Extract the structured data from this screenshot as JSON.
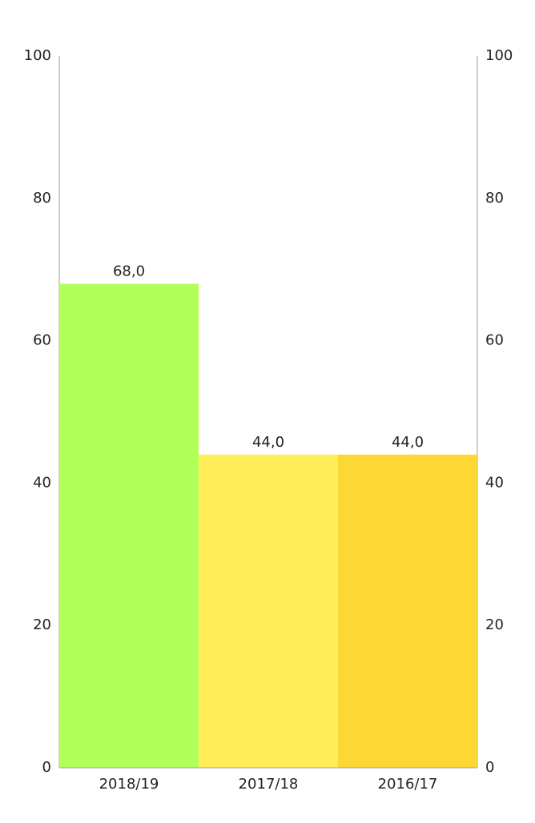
{
  "chart_data": {
    "type": "bar",
    "categories": [
      "2018/19",
      "2017/18",
      "2016/17"
    ],
    "values": [
      68,
      44,
      44
    ],
    "value_labels": [
      "68,0",
      "44,0",
      "44,0"
    ],
    "colors": [
      "#b2ff59",
      "#ffee58",
      "#fdd835"
    ],
    "ylim": [
      0,
      100
    ],
    "yticks": [
      0,
      20,
      40,
      60,
      80,
      100
    ],
    "y2lim": [
      0,
      100
    ],
    "y2ticks": [
      0,
      20,
      40,
      60,
      80,
      100
    ],
    "grid": false
  }
}
